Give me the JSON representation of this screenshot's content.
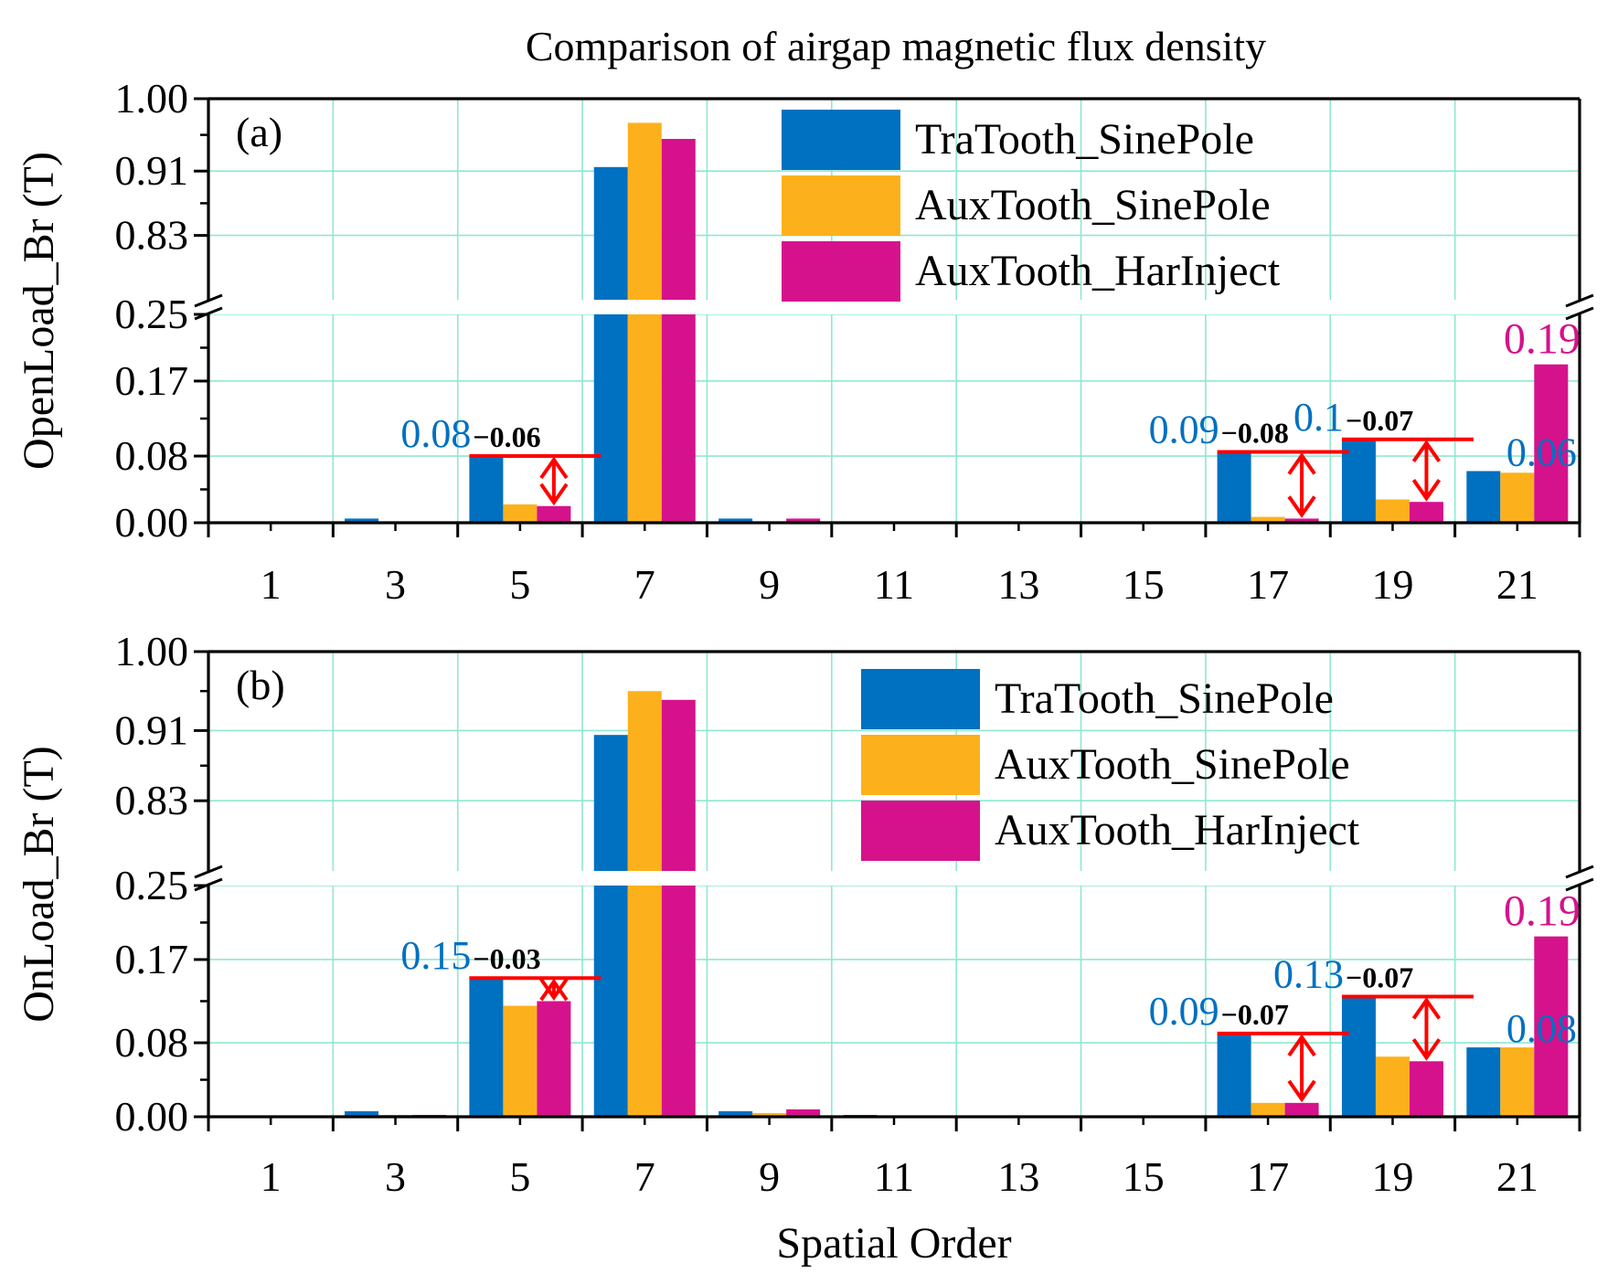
{
  "title": "Comparison of airgap magnetic flux density",
  "chart_data": [
    {
      "type": "bar",
      "panel_label": "(a)",
      "ylabel": "OpenLoad_Br (T)",
      "xlabel": "",
      "categories": [
        "1",
        "3",
        "5",
        "7",
        "9",
        "11",
        "13",
        "15",
        "17",
        "19",
        "21"
      ],
      "y_ticks_lower": [
        "0.00",
        "0.08",
        "0.17",
        "0.25"
      ],
      "y_ticks_upper": [
        "0.83",
        "0.91",
        "1.00"
      ],
      "ylim_lower": [
        0,
        0.25
      ],
      "ylim_upper": [
        0.75,
        1.0
      ],
      "grid": true,
      "legend_position": "top-right",
      "series": [
        {
          "name": "TraTooth_SinePole",
          "color": "#0070C0",
          "values": [
            0,
            0.005,
            0.08,
            0.915,
            0.005,
            0,
            0,
            0,
            0.085,
            0.1,
            0.062
          ]
        },
        {
          "name": "AuxTooth_SinePole",
          "color": "#FCB11C",
          "values": [
            0,
            0,
            0.022,
            0.97,
            0,
            0,
            0,
            0,
            0.007,
            0.028,
            0.06
          ]
        },
        {
          "name": "AuxTooth_HarInject",
          "color": "#D5128C",
          "values": [
            0,
            0,
            0.02,
            0.95,
            0.005,
            0,
            0,
            0,
            0.005,
            0.025,
            0.19
          ]
        }
      ],
      "annotations": [
        {
          "order": "5",
          "base": "0.08",
          "delta": "−0.06"
        },
        {
          "order": "17",
          "base": "0.09",
          "delta": "−0.08"
        },
        {
          "order": "19",
          "base": "0.1",
          "delta": "−0.07"
        },
        {
          "order": "21",
          "base": "0.06",
          "top": "0.19"
        }
      ]
    },
    {
      "type": "bar",
      "panel_label": "(b)",
      "ylabel": "OnLoad_Br (T)",
      "xlabel": "Spatial Order",
      "categories": [
        "1",
        "3",
        "5",
        "7",
        "9",
        "11",
        "13",
        "15",
        "17",
        "19",
        "21"
      ],
      "y_ticks_lower": [
        "0.00",
        "0.08",
        "0.17",
        "0.25"
      ],
      "y_ticks_upper": [
        "0.83",
        "0.91",
        "1.00"
      ],
      "ylim_lower": [
        0,
        0.25
      ],
      "ylim_upper": [
        0.75,
        1.0
      ],
      "grid": true,
      "legend_position": "top-right",
      "series": [
        {
          "name": "TraTooth_SinePole",
          "color": "#0070C0",
          "values": [
            0,
            0.006,
            0.15,
            0.905,
            0.006,
            0.002,
            0,
            0,
            0.09,
            0.13,
            0.075
          ]
        },
        {
          "name": "AuxTooth_SinePole",
          "color": "#FCB11C",
          "values": [
            0,
            0.002,
            0.12,
            0.955,
            0.004,
            0,
            0,
            0.001,
            0.015,
            0.065,
            0.075
          ]
        },
        {
          "name": "AuxTooth_HarInject",
          "color": "#D5128C",
          "values": [
            0,
            0.002,
            0.125,
            0.945,
            0.008,
            0,
            0,
            0,
            0.015,
            0.06,
            0.195
          ]
        }
      ],
      "annotations": [
        {
          "order": "5",
          "base": "0.15",
          "delta": "−0.03"
        },
        {
          "order": "17",
          "base": "0.09",
          "delta": "−0.07"
        },
        {
          "order": "19",
          "base": "0.13",
          "delta": "−0.07"
        },
        {
          "order": "21",
          "base": "0.08",
          "top": "0.19"
        }
      ]
    }
  ]
}
